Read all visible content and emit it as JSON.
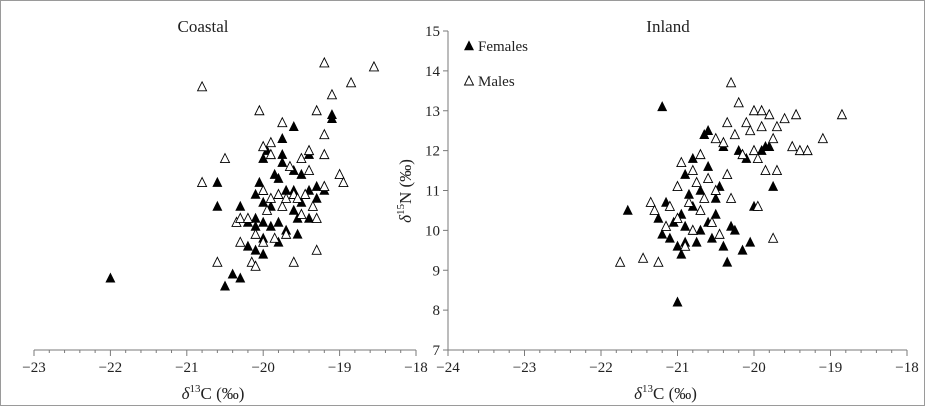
{
  "chart_data": [
    {
      "type": "scatter",
      "title": "Coastal",
      "xlabel": "δ13C (‰)",
      "ylabel": "",
      "xlim": [
        -23,
        -18
      ],
      "ylim": [
        7,
        15
      ],
      "x_ticks": [
        -23,
        -22,
        -21,
        -20,
        -19,
        -18
      ],
      "y_ticks": [],
      "grid": false,
      "series": [
        {
          "name": "Females",
          "marker": "filled-triangle",
          "color": "#000000",
          "points": [
            [
              -22.0,
              8.8
            ],
            [
              -20.6,
              11.2
            ],
            [
              -20.6,
              10.6
            ],
            [
              -20.5,
              8.6
            ],
            [
              -20.4,
              8.9
            ],
            [
              -20.3,
              10.6
            ],
            [
              -20.3,
              8.8
            ],
            [
              -20.2,
              10.2
            ],
            [
              -20.2,
              9.6
            ],
            [
              -20.1,
              10.9
            ],
            [
              -20.1,
              10.3
            ],
            [
              -20.1,
              10.1
            ],
            [
              -20.1,
              9.5
            ],
            [
              -20.05,
              11.2
            ],
            [
              -20.0,
              11.8
            ],
            [
              -20.0,
              11.0
            ],
            [
              -20.0,
              10.7
            ],
            [
              -20.0,
              10.2
            ],
            [
              -20.0,
              9.8
            ],
            [
              -20.0,
              9.4
            ],
            [
              -19.95,
              12.0
            ],
            [
              -19.9,
              10.6
            ],
            [
              -19.9,
              10.1
            ],
            [
              -19.85,
              11.4
            ],
            [
              -19.8,
              11.3
            ],
            [
              -19.8,
              10.2
            ],
            [
              -19.8,
              9.7
            ],
            [
              -19.75,
              12.3
            ],
            [
              -19.75,
              11.9
            ],
            [
              -19.75,
              11.7
            ],
            [
              -19.7,
              11.0
            ],
            [
              -19.7,
              10.0
            ],
            [
              -19.6,
              12.6
            ],
            [
              -19.6,
              11.5
            ],
            [
              -19.6,
              11.0
            ],
            [
              -19.6,
              10.5
            ],
            [
              -19.55,
              10.3
            ],
            [
              -19.55,
              9.9
            ],
            [
              -19.5,
              11.4
            ],
            [
              -19.5,
              10.7
            ],
            [
              -19.4,
              11.9
            ],
            [
              -19.4,
              11.0
            ],
            [
              -19.4,
              10.3
            ],
            [
              -19.3,
              11.1
            ],
            [
              -19.3,
              10.8
            ],
            [
              -19.2,
              11.0
            ],
            [
              -19.1,
              12.8
            ],
            [
              -19.1,
              12.9
            ]
          ]
        },
        {
          "name": "Males",
          "marker": "open-triangle",
          "color": "#000000",
          "points": [
            [
              -20.8,
              13.6
            ],
            [
              -20.8,
              11.2
            ],
            [
              -20.6,
              9.2
            ],
            [
              -20.5,
              11.8
            ],
            [
              -20.35,
              10.2
            ],
            [
              -20.3,
              10.3
            ],
            [
              -20.3,
              9.7
            ],
            [
              -20.2,
              10.3
            ],
            [
              -20.15,
              9.2
            ],
            [
              -20.1,
              9.1
            ],
            [
              -20.1,
              9.9
            ],
            [
              -20.05,
              13.0
            ],
            [
              -20.0,
              12.1
            ],
            [
              -20.0,
              11.0
            ],
            [
              -20.0,
              9.7
            ],
            [
              -19.95,
              10.5
            ],
            [
              -19.9,
              12.2
            ],
            [
              -19.9,
              11.9
            ],
            [
              -19.9,
              10.8
            ],
            [
              -19.85,
              9.8
            ],
            [
              -19.8,
              10.9
            ],
            [
              -19.75,
              12.7
            ],
            [
              -19.75,
              10.6
            ],
            [
              -19.7,
              10.8
            ],
            [
              -19.7,
              9.9
            ],
            [
              -19.65,
              11.6
            ],
            [
              -19.6,
              10.9
            ],
            [
              -19.6,
              9.2
            ],
            [
              -19.55,
              10.8
            ],
            [
              -19.5,
              11.8
            ],
            [
              -19.5,
              10.4
            ],
            [
              -19.45,
              10.9
            ],
            [
              -19.4,
              12.0
            ],
            [
              -19.4,
              11.5
            ],
            [
              -19.35,
              10.6
            ],
            [
              -19.3,
              13.0
            ],
            [
              -19.3,
              10.3
            ],
            [
              -19.3,
              9.5
            ],
            [
              -19.2,
              14.2
            ],
            [
              -19.2,
              12.4
            ],
            [
              -19.2,
              11.9
            ],
            [
              -19.2,
              11.1
            ],
            [
              -19.1,
              13.4
            ],
            [
              -19.0,
              11.4
            ],
            [
              -18.95,
              11.2
            ],
            [
              -18.85,
              13.7
            ],
            [
              -18.55,
              14.1
            ]
          ]
        }
      ]
    },
    {
      "type": "scatter",
      "title": "Inland",
      "xlabel": "δ13C (‰)",
      "ylabel": "δ15N (‰)",
      "xlim": [
        -24,
        -18
      ],
      "ylim": [
        7,
        15
      ],
      "x_ticks": [
        -24,
        -23,
        -22,
        -21,
        -20,
        -19,
        -18
      ],
      "y_ticks": [
        7,
        8,
        9,
        10,
        11,
        12,
        13,
        14,
        15
      ],
      "grid": false,
      "legend": {
        "placement": "top-left",
        "entries": [
          "Females",
          "Males"
        ]
      },
      "series": [
        {
          "name": "Females",
          "marker": "filled-triangle",
          "color": "#000000",
          "points": [
            [
              -21.65,
              10.5
            ],
            [
              -21.25,
              10.3
            ],
            [
              -21.2,
              13.1
            ],
            [
              -21.2,
              9.9
            ],
            [
              -21.15,
              10.7
            ],
            [
              -21.1,
              9.8
            ],
            [
              -21.05,
              10.2
            ],
            [
              -21.0,
              9.6
            ],
            [
              -20.95,
              10.4
            ],
            [
              -20.95,
              9.4
            ],
            [
              -20.9,
              11.4
            ],
            [
              -20.9,
              10.1
            ],
            [
              -20.9,
              9.7
            ],
            [
              -20.85,
              10.9
            ],
            [
              -20.8,
              11.8
            ],
            [
              -20.8,
              10.6
            ],
            [
              -20.75,
              9.7
            ],
            [
              -20.7,
              11.0
            ],
            [
              -20.65,
              12.4
            ],
            [
              -20.6,
              12.5
            ],
            [
              -20.6,
              11.6
            ],
            [
              -20.6,
              10.2
            ],
            [
              -20.55,
              9.8
            ],
            [
              -20.5,
              10.4
            ],
            [
              -20.45,
              11.1
            ],
            [
              -20.4,
              12.1
            ],
            [
              -20.4,
              9.6
            ],
            [
              -20.35,
              9.2
            ],
            [
              -20.3,
              10.1
            ],
            [
              -20.25,
              10.0
            ],
            [
              -20.2,
              12.0
            ],
            [
              -20.15,
              9.5
            ],
            [
              -20.1,
              11.8
            ],
            [
              -20.05,
              9.7
            ],
            [
              -20.0,
              10.6
            ],
            [
              -19.9,
              12.0
            ],
            [
              -19.85,
              12.1
            ],
            [
              -19.8,
              12.1
            ],
            [
              -19.75,
              11.1
            ],
            [
              -21.0,
              8.2
            ],
            [
              -20.7,
              10.0
            ],
            [
              -20.5,
              10.8
            ]
          ]
        },
        {
          "name": "Males",
          "marker": "open-triangle",
          "color": "#000000",
          "points": [
            [
              -21.75,
              9.2
            ],
            [
              -21.45,
              9.3
            ],
            [
              -21.35,
              10.7
            ],
            [
              -21.3,
              10.5
            ],
            [
              -21.25,
              9.2
            ],
            [
              -21.15,
              10.1
            ],
            [
              -21.1,
              10.6
            ],
            [
              -21.0,
              11.1
            ],
            [
              -21.0,
              10.3
            ],
            [
              -20.95,
              11.7
            ],
            [
              -20.9,
              9.6
            ],
            [
              -20.85,
              10.7
            ],
            [
              -20.8,
              11.5
            ],
            [
              -20.8,
              10.0
            ],
            [
              -20.75,
              11.2
            ],
            [
              -20.7,
              11.9
            ],
            [
              -20.7,
              10.5
            ],
            [
              -20.65,
              10.8
            ],
            [
              -20.6,
              11.3
            ],
            [
              -20.55,
              10.2
            ],
            [
              -20.5,
              12.3
            ],
            [
              -20.5,
              11.0
            ],
            [
              -20.45,
              9.9
            ],
            [
              -20.4,
              12.2
            ],
            [
              -20.35,
              12.7
            ],
            [
              -20.35,
              11.4
            ],
            [
              -20.3,
              13.7
            ],
            [
              -20.3,
              10.8
            ],
            [
              -20.25,
              12.4
            ],
            [
              -20.2,
              13.2
            ],
            [
              -20.15,
              11.9
            ],
            [
              -20.1,
              12.7
            ],
            [
              -20.05,
              12.5
            ],
            [
              -20.0,
              13.0
            ],
            [
              -20.0,
              12.0
            ],
            [
              -19.95,
              11.8
            ],
            [
              -19.9,
              13.0
            ],
            [
              -19.9,
              12.6
            ],
            [
              -19.85,
              11.5
            ],
            [
              -19.8,
              12.9
            ],
            [
              -19.75,
              12.3
            ],
            [
              -19.7,
              12.6
            ],
            [
              -19.7,
              11.5
            ],
            [
              -19.6,
              12.8
            ],
            [
              -19.5,
              12.1
            ],
            [
              -19.45,
              12.9
            ],
            [
              -19.4,
              12.0
            ],
            [
              -19.3,
              12.0
            ],
            [
              -19.1,
              12.3
            ],
            [
              -19.95,
              10.6
            ],
            [
              -19.75,
              9.8
            ],
            [
              -18.85,
              12.9
            ]
          ]
        }
      ]
    }
  ]
}
